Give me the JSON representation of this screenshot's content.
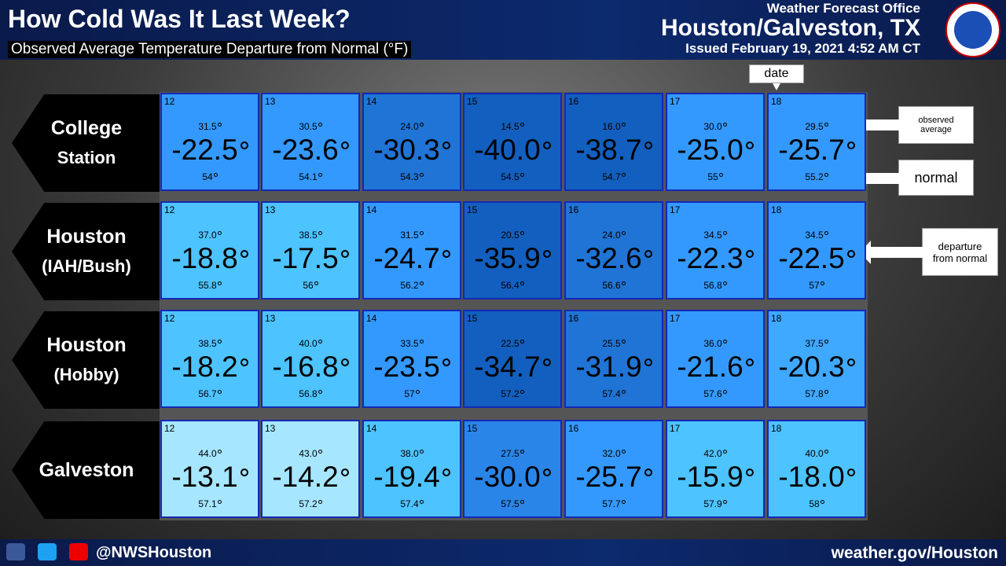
{
  "header": {
    "title": "How Cold Was It Last Week?",
    "subtitle": "Observed Average Temperature Departure from Normal (°F)",
    "office": "Weather Forecast Office",
    "location": "Houston/Galveston, TX",
    "issued": "Issued February 19, 2021 4:52 AM CT"
  },
  "legend": {
    "date": "date",
    "observed": "observed average",
    "normal": "normal",
    "departure": "departure from normal"
  },
  "rows": [
    {
      "station": [
        "College",
        "Station"
      ],
      "cells": [
        {
          "day": "12",
          "observed": "31.5",
          "departure": "-22.5",
          "normal": "54",
          "color": "#3399ff"
        },
        {
          "day": "13",
          "observed": "30.5",
          "departure": "-23.6",
          "normal": "54.1",
          "color": "#3399ff"
        },
        {
          "day": "14",
          "observed": "24.0",
          "departure": "-30.3",
          "normal": "54.3",
          "color": "#1f74d6"
        },
        {
          "day": "15",
          "observed": "14.5",
          "departure": "-40.0",
          "normal": "54.5",
          "color": "#125fbf"
        },
        {
          "day": "16",
          "observed": "16.0",
          "departure": "-38.7",
          "normal": "54.7",
          "color": "#125fbf"
        },
        {
          "day": "17",
          "observed": "30.0",
          "departure": "-25.0",
          "normal": "55",
          "color": "#3399ff"
        },
        {
          "day": "18",
          "observed": "29.5",
          "departure": "-25.7",
          "normal": "55.2",
          "color": "#3399ff"
        }
      ]
    },
    {
      "station": [
        "Houston",
        "(IAH/Bush)"
      ],
      "cells": [
        {
          "day": "12",
          "observed": "37.0",
          "departure": "-18.8",
          "normal": "55.8",
          "color": "#4dc3ff"
        },
        {
          "day": "13",
          "observed": "38.5",
          "departure": "-17.5",
          "normal": "56",
          "color": "#4dc3ff"
        },
        {
          "day": "14",
          "observed": "31.5",
          "departure": "-24.7",
          "normal": "56.2",
          "color": "#3399ff"
        },
        {
          "day": "15",
          "observed": "20.5",
          "departure": "-35.9",
          "normal": "56.4",
          "color": "#125fbf"
        },
        {
          "day": "16",
          "observed": "24.0",
          "departure": "-32.6",
          "normal": "56.6",
          "color": "#1f74d6"
        },
        {
          "day": "17",
          "observed": "34.5",
          "departure": "-22.3",
          "normal": "56.8",
          "color": "#3399ff"
        },
        {
          "day": "18",
          "observed": "34.5",
          "departure": "-22.5",
          "normal": "57",
          "color": "#3399ff"
        }
      ]
    },
    {
      "station": [
        "Houston",
        "(Hobby)"
      ],
      "cells": [
        {
          "day": "12",
          "observed": "38.5",
          "departure": "-18.2",
          "normal": "56.7",
          "color": "#4dc3ff"
        },
        {
          "day": "13",
          "observed": "40.0",
          "departure": "-16.8",
          "normal": "56.8",
          "color": "#4dc3ff"
        },
        {
          "day": "14",
          "observed": "33.5",
          "departure": "-23.5",
          "normal": "57",
          "color": "#3399ff"
        },
        {
          "day": "15",
          "observed": "22.5",
          "departure": "-34.7",
          "normal": "57.2",
          "color": "#125fbf"
        },
        {
          "day": "16",
          "observed": "25.5",
          "departure": "-31.9",
          "normal": "57.4",
          "color": "#1f74d6"
        },
        {
          "day": "17",
          "observed": "36.0",
          "departure": "-21.6",
          "normal": "57.6",
          "color": "#3399ff"
        },
        {
          "day": "18",
          "observed": "37.5",
          "departure": "-20.3",
          "normal": "57.8",
          "color": "#3fa8ff"
        }
      ]
    },
    {
      "station": [
        "Galveston"
      ],
      "cells": [
        {
          "day": "12",
          "observed": "44.0",
          "departure": "-13.1",
          "normal": "57.1",
          "color": "#a6e6ff"
        },
        {
          "day": "13",
          "observed": "43.0",
          "departure": "-14.2",
          "normal": "57.2",
          "color": "#a6e6ff"
        },
        {
          "day": "14",
          "observed": "38.0",
          "departure": "-19.4",
          "normal": "57.4",
          "color": "#4dc3ff"
        },
        {
          "day": "15",
          "observed": "27.5",
          "departure": "-30.0",
          "normal": "57.5",
          "color": "#2a85e8"
        },
        {
          "day": "16",
          "observed": "32.0",
          "departure": "-25.7",
          "normal": "57.7",
          "color": "#3399ff"
        },
        {
          "day": "17",
          "observed": "42.0",
          "departure": "-15.9",
          "normal": "57.9",
          "color": "#4dc3ff"
        },
        {
          "day": "18",
          "observed": "40.0",
          "departure": "-18.0",
          "normal": "58",
          "color": "#4dc3ff"
        }
      ]
    }
  ],
  "footer": {
    "handle": "@NWSHouston",
    "website": "weather.gov/Houston"
  }
}
